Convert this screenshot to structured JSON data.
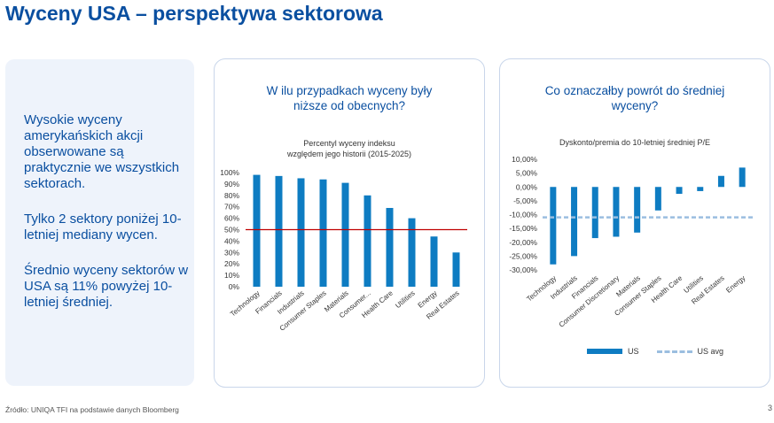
{
  "page": {
    "title": "Wyceny USA – perspektywa sektorowa",
    "source": "Źródło: UNIQA TFI na podstawie danych Bloomberg",
    "page_number": "3"
  },
  "left_panel": {
    "paragraphs": [
      "Wysokie wyceny amerykańskich akcji obserwowane są praktycznie we wszystkich sektorach.",
      "Tylko 2 sektory poniżej 10-letniej mediany wycen.",
      "Średnio wyceny sektorów w USA są 11% powyżej 10-letniej średniej."
    ]
  },
  "colors": {
    "bar": "#0e7cc2",
    "median_line": "#c00000",
    "avg_line": "#9bbee0",
    "accent": "#0a4fa0"
  },
  "chart_data": [
    {
      "type": "bar",
      "card_title": "W ilu przypadkach wyceny były niższe od obecnych?",
      "title": "Percentyl wyceny indeksu względem jego historii (2015-2025)",
      "categories": [
        "Technology",
        "Financials",
        "Industrials",
        "Consumer Staples",
        "Materials",
        "Consumer...",
        "Health Care",
        "Utilities",
        "Energy",
        "Real Estates"
      ],
      "values": [
        98,
        97,
        95,
        94,
        91,
        80,
        69,
        60,
        44,
        30
      ],
      "reference_line": 50,
      "ylim": [
        0,
        100
      ],
      "yticks": [
        "0%",
        "10%",
        "20%",
        "30%",
        "40%",
        "50%",
        "60%",
        "70%",
        "80%",
        "90%",
        "100%"
      ],
      "grid": false
    },
    {
      "type": "bar",
      "card_title": "Co oznaczałby powrót do średniej wyceny?",
      "title": "Dyskonto/premia do 10-letniej średniej P/E",
      "categories": [
        "Technology",
        "Industrials",
        "Financials",
        "Consumer Discretionary",
        "Materials",
        "Consumer Staples",
        "Health Care",
        "Utilities",
        "Real Estates",
        "Energy"
      ],
      "series": [
        {
          "name": "US",
          "values": [
            -28,
            -25,
            -18.5,
            -18,
            -16.5,
            -8.5,
            -2.5,
            -1.5,
            4,
            7
          ]
        },
        {
          "name": "US avg",
          "values": [
            -11,
            -11,
            -11,
            -11,
            -11,
            -11,
            -11,
            -11,
            -11,
            -11
          ]
        }
      ],
      "ylim": [
        -30,
        10
      ],
      "yticks": [
        "-30,00%",
        "-25,00%",
        "-20,00%",
        "-15,00%",
        "-10,00%",
        "-5,00%",
        "0,00%",
        "5,00%",
        "10,00%"
      ],
      "legend": "bottom",
      "grid": false
    }
  ]
}
